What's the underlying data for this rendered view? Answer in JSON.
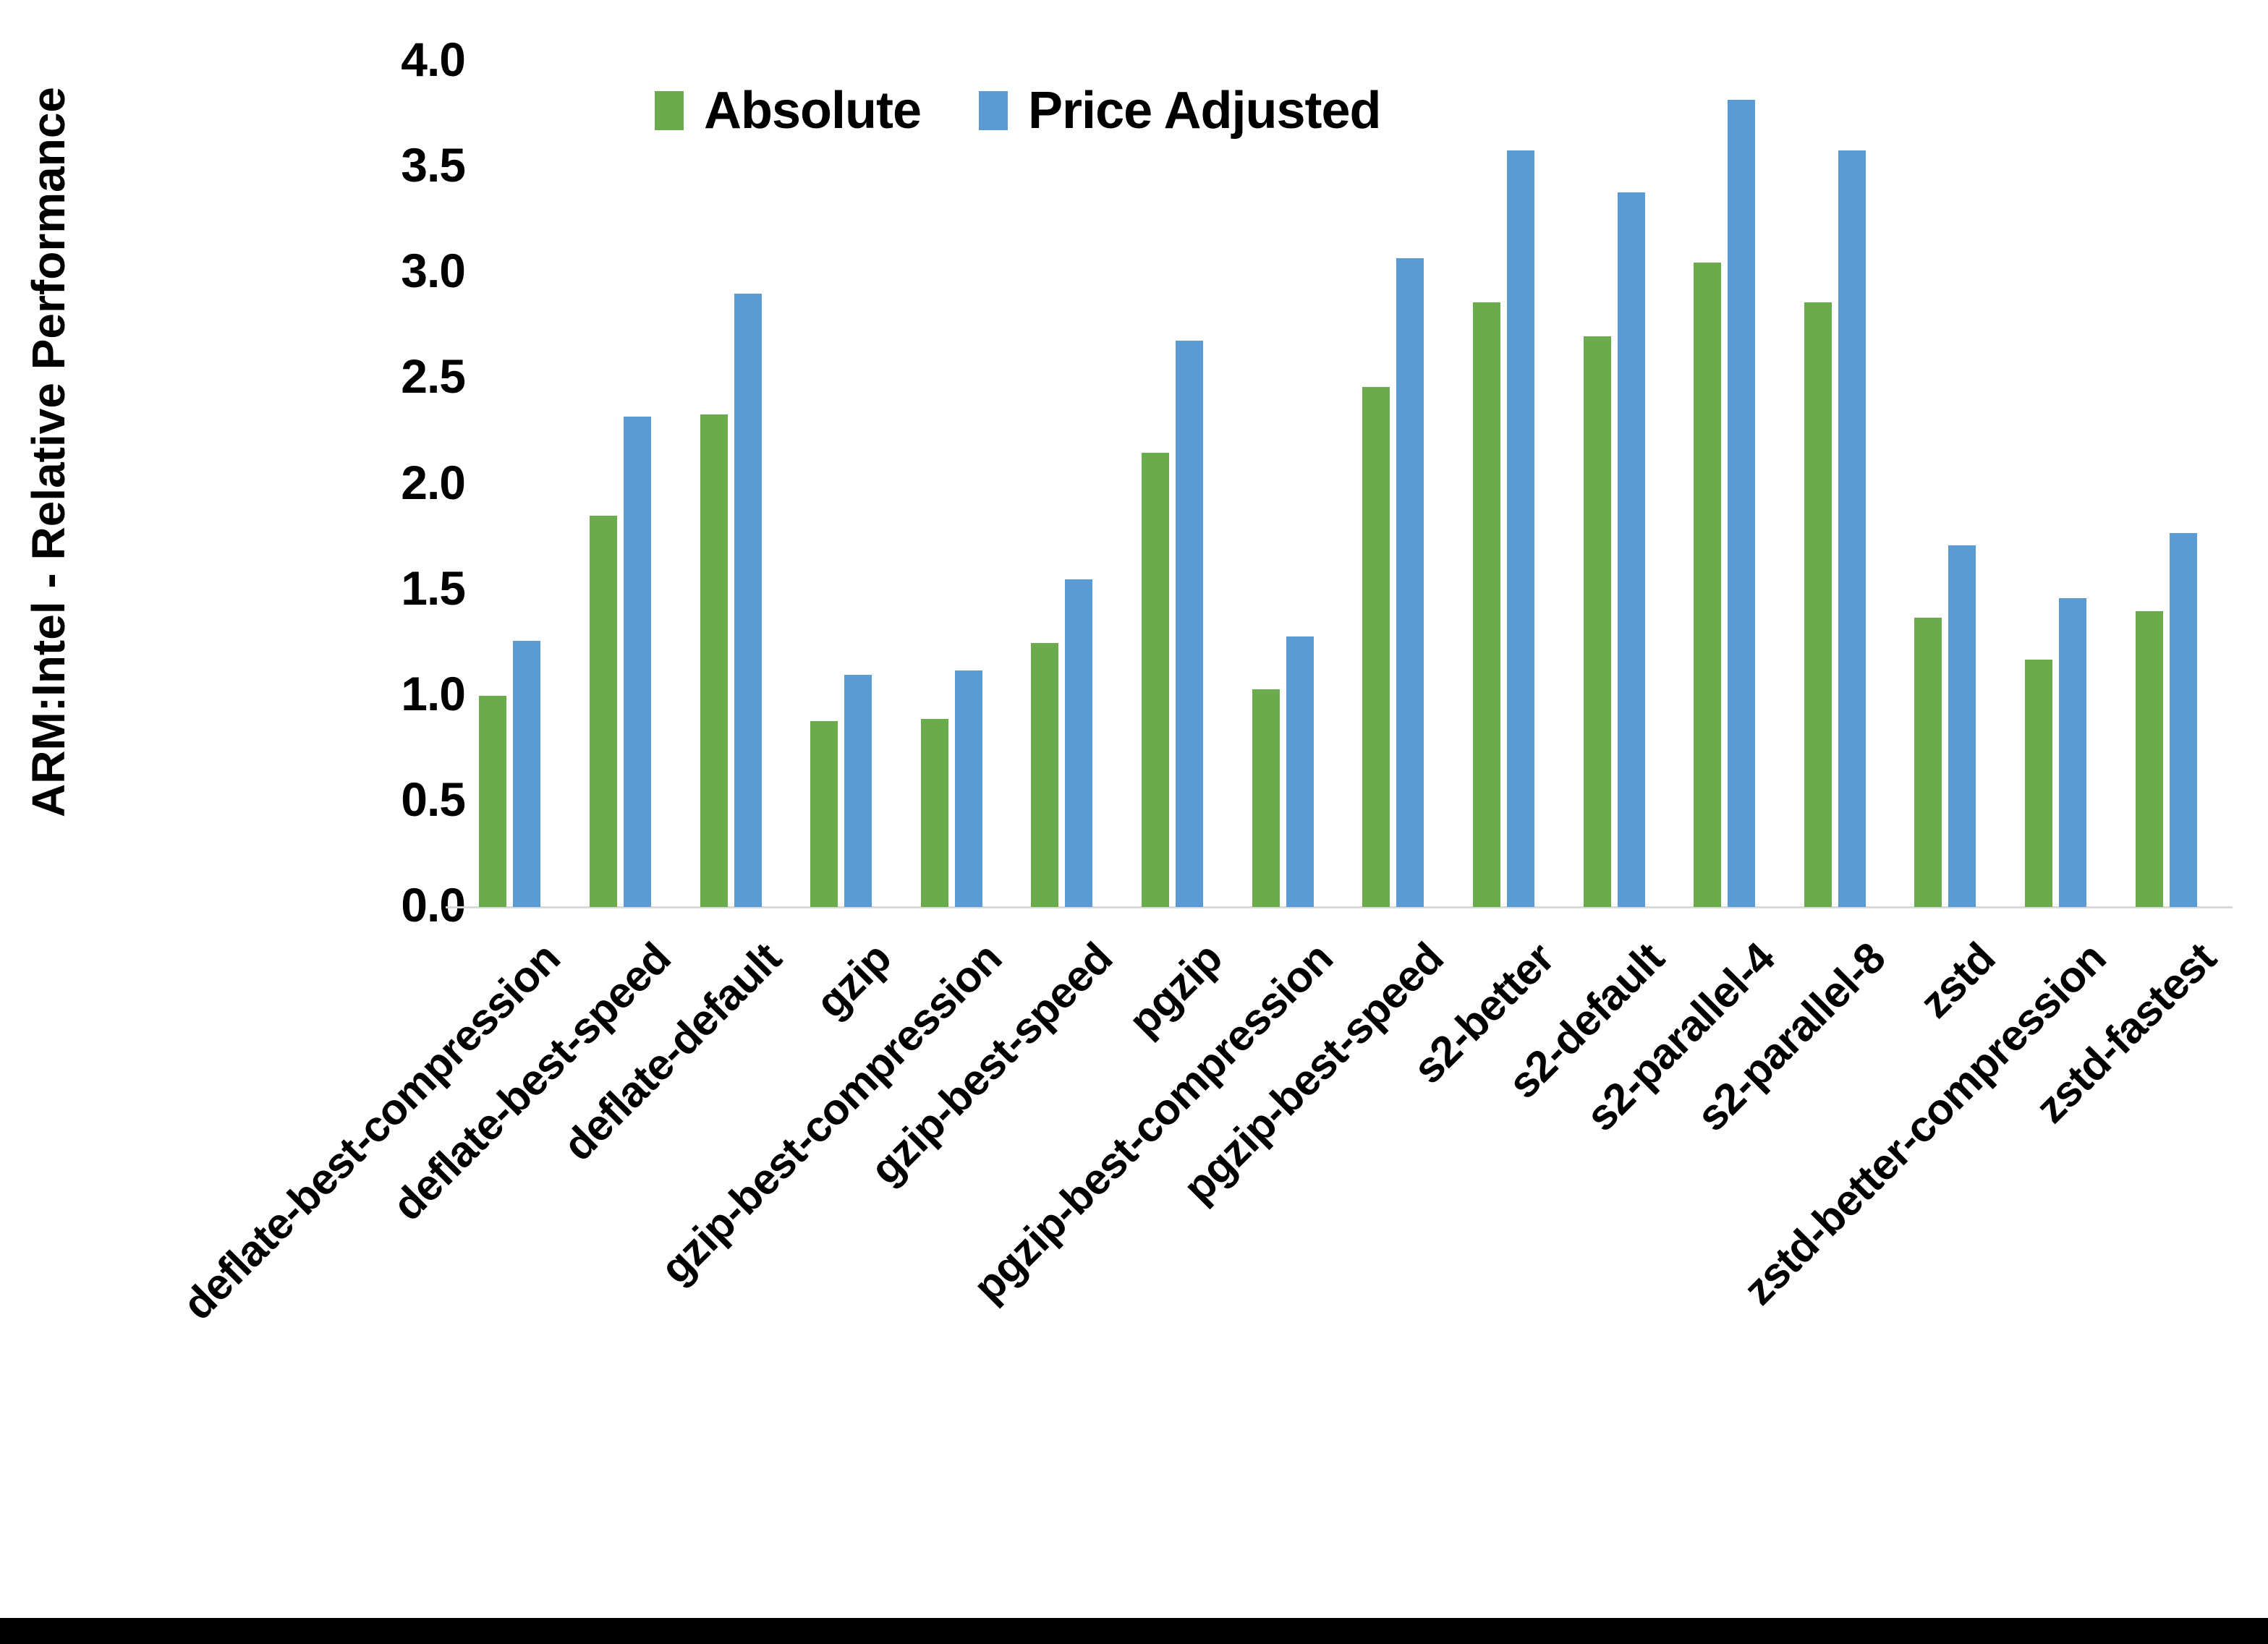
{
  "chart_data": {
    "type": "bar",
    "title": "",
    "xlabel": "",
    "ylabel": "ARM:Intel - Relative Performance",
    "ylim": [
      0.0,
      4.0
    ],
    "ytick_step": 0.5,
    "ytick_labels": [
      "0.0",
      "0.5",
      "1.0",
      "1.5",
      "2.0",
      "2.5",
      "3.0",
      "3.5",
      "4.0"
    ],
    "grid": false,
    "legend_position": "top-center",
    "categories": [
      "deflate-best-compression",
      "deflate-best-speed",
      "deflate-default",
      "gzip",
      "gzip-best-compression",
      "gzip-best-speed",
      "pgzip",
      "pgzip-best-compression",
      "pgzip-best-speed",
      "s2-better",
      "s2-default",
      "s2-parallel-4",
      "s2-parallel-8",
      "zstd",
      "zstd-better-compression",
      "zstd-fastest"
    ],
    "series": [
      {
        "name": "Absolute",
        "color": "#6AAB4C",
        "values": [
          1.0,
          1.85,
          2.33,
          0.88,
          0.89,
          1.25,
          2.15,
          1.03,
          2.46,
          2.86,
          2.7,
          3.05,
          2.86,
          1.37,
          1.17,
          1.4
        ]
      },
      {
        "name": "Price Adjusted",
        "color": "#5B9BD5",
        "values": [
          1.26,
          2.32,
          2.9,
          1.1,
          1.12,
          1.55,
          2.68,
          1.28,
          3.07,
          3.58,
          3.38,
          3.82,
          3.58,
          1.71,
          1.46,
          1.77
        ]
      }
    ]
  },
  "colors": {
    "background": "#FFFFFF",
    "axis_line": "#D9D9D9",
    "text": "#000000",
    "bottom_bar": "#000000"
  }
}
